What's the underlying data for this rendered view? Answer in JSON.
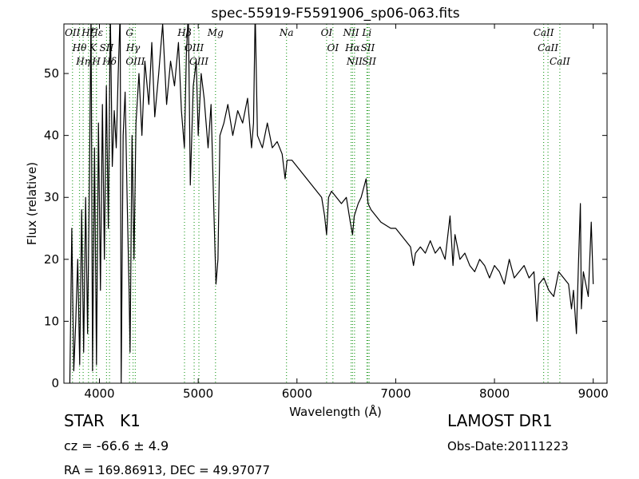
{
  "chart_data": {
    "type": "line",
    "title": "spec-55919-F5591906_sp06-063.fits",
    "x_label": "Wavelength (Å)",
    "y_label": "Flux (relative)",
    "xlim": [
      3640,
      9140
    ],
    "ylim": [
      0,
      58
    ],
    "xticks": [
      4000,
      5000,
      6000,
      7000,
      8000,
      9000
    ],
    "yticks": [
      0,
      10,
      20,
      30,
      40,
      50
    ],
    "color": "#000000",
    "x": [
      3700,
      3720,
      3740,
      3760,
      3780,
      3800,
      3820,
      3840,
      3860,
      3880,
      3900,
      3915,
      3930,
      3950,
      3970,
      3990,
      4010,
      4030,
      4050,
      4070,
      4090,
      4110,
      4130,
      4150,
      4170,
      4190,
      4210,
      4220,
      4240,
      4260,
      4280,
      4300,
      4310,
      4330,
      4350,
      4370,
      4400,
      4430,
      4460,
      4500,
      4530,
      4560,
      4600,
      4640,
      4680,
      4720,
      4760,
      4800,
      4830,
      4860,
      4880,
      4900,
      4920,
      4950,
      4980,
      5000,
      5030,
      5060,
      5100,
      5130,
      5160,
      5180,
      5200,
      5220,
      5260,
      5300,
      5350,
      5400,
      5450,
      5500,
      5540,
      5560,
      5577,
      5600,
      5650,
      5700,
      5750,
      5800,
      5850,
      5880,
      5900,
      5950,
      6000,
      6050,
      6100,
      6150,
      6200,
      6250,
      6280,
      6300,
      6320,
      6350,
      6400,
      6450,
      6500,
      6540,
      6563,
      6580,
      6620,
      6650,
      6700,
      6720,
      6750,
      6800,
      6850,
      6900,
      6950,
      7000,
      7050,
      7100,
      7150,
      7180,
      7200,
      7250,
      7300,
      7350,
      7400,
      7450,
      7500,
      7550,
      7580,
      7600,
      7650,
      7700,
      7750,
      7800,
      7850,
      7900,
      7950,
      8000,
      8050,
      8100,
      8150,
      8200,
      8250,
      8300,
      8350,
      8400,
      8430,
      8450,
      8500,
      8550,
      8600,
      8650,
      8700,
      8750,
      8780,
      8800,
      8830,
      8850,
      8870,
      8880,
      8900,
      8950,
      8980,
      9000
    ],
    "values": [
      0,
      25,
      2,
      10,
      20,
      3,
      28,
      5,
      30,
      8,
      35,
      60,
      2,
      38,
      3,
      42,
      15,
      45,
      20,
      48,
      25,
      60,
      35,
      44,
      38,
      50,
      60,
      0,
      40,
      47,
      30,
      15,
      5,
      40,
      20,
      42,
      50,
      40,
      52,
      45,
      55,
      43,
      50,
      58,
      45,
      52,
      48,
      55,
      44,
      38,
      53,
      60,
      32,
      48,
      52,
      40,
      50,
      46,
      38,
      45,
      27,
      16,
      20,
      40,
      42,
      45,
      40,
      44,
      42,
      46,
      38,
      42,
      60,
      40,
      38,
      42,
      38,
      39,
      37,
      33,
      36,
      36,
      35,
      34,
      33,
      32,
      31,
      30,
      27,
      24,
      30,
      31,
      30,
      29,
      30,
      26,
      24,
      27,
      29,
      30,
      33,
      29,
      28,
      27,
      26,
      25.5,
      25,
      25,
      24,
      23,
      22,
      19,
      21,
      22,
      21,
      23,
      21,
      22,
      20,
      27,
      19,
      24,
      20,
      21,
      19,
      18,
      20,
      19,
      17,
      19,
      18,
      16,
      20,
      17,
      18,
      19,
      17,
      18,
      10,
      16,
      17,
      15,
      14,
      18,
      17,
      16,
      12,
      15,
      8,
      19,
      29,
      12,
      18,
      14,
      26,
      16
    ],
    "line_color": "#2ca02c",
    "spectral_lines": [
      {
        "label": "OII",
        "wavelength": 3727
      },
      {
        "label": "Hθ",
        "wavelength": 3798
      },
      {
        "label": "Hη",
        "wavelength": 3835
      },
      {
        "label": "Hζ",
        "wavelength": 3889
      },
      {
        "label": "K",
        "wavelength": 3934
      },
      {
        "label": "H",
        "wavelength": 3968
      },
      {
        "label": "Hε",
        "wavelength": 3970
      },
      {
        "label": "SII",
        "wavelength": 4072
      },
      {
        "label": "Hδ",
        "wavelength": 4102
      },
      {
        "label": "G",
        "wavelength": 4305
      },
      {
        "label": "Hγ",
        "wavelength": 4340
      },
      {
        "label": "OIII",
        "wavelength": 4363
      },
      {
        "label": "Hβ",
        "wavelength": 4861
      },
      {
        "label": "OIII",
        "wavelength": 4959
      },
      {
        "label": "OIII",
        "wavelength": 5007
      },
      {
        "label": "Mg",
        "wavelength": 5175
      },
      {
        "label": "Na",
        "wavelength": 5894
      },
      {
        "label": "OI",
        "wavelength": 6300
      },
      {
        "label": "OI",
        "wavelength": 6364
      },
      {
        "label": "NII",
        "wavelength": 6548
      },
      {
        "label": "Hα",
        "wavelength": 6563
      },
      {
        "label": "NII",
        "wavelength": 6583
      },
      {
        "label": "Li",
        "wavelength": 6708
      },
      {
        "label": "SII",
        "wavelength": 6717
      },
      {
        "label": "SII",
        "wavelength": 6731
      },
      {
        "label": "CaII",
        "wavelength": 8498
      },
      {
        "label": "CaII",
        "wavelength": 8542
      },
      {
        "label": "CaII",
        "wavelength": 8662
      }
    ],
    "annotations": {
      "object_class": "STAR",
      "subclass": "K1",
      "redshift": "cz = -66.6 ± 4.9",
      "coordinates": "RA = 169.86913, DEC = 49.97077",
      "survey": "LAMOST DR1",
      "obs_date": "Obs-Date:20111223"
    }
  }
}
